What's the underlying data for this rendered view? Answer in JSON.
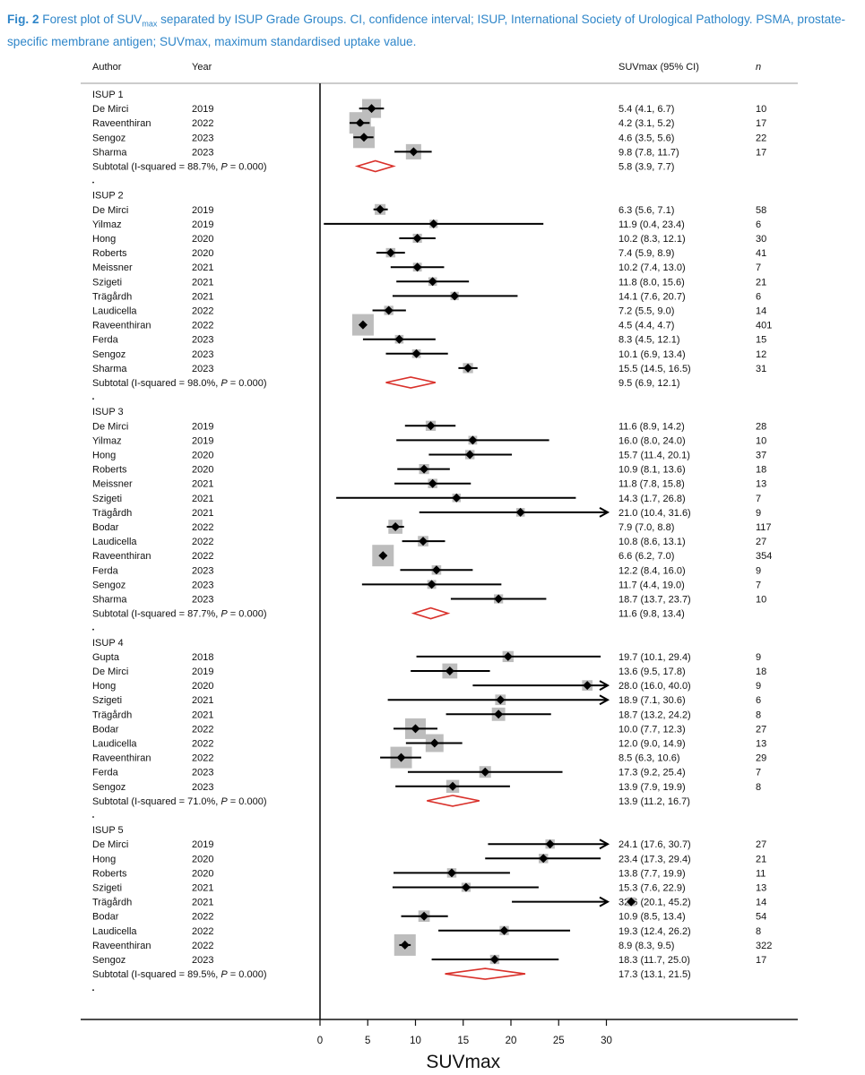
{
  "caption": {
    "fig_label": "Fig. 2",
    "pre": "Forest plot of SUV",
    "sub": "max",
    "post": " separated by ISUP Grade Groups. CI, confidence interval; ISUP, International Society of Urological Pathology. PSMA, prostate-specific membrane antigen; SUVmax, maximum standardised uptake value."
  },
  "colors": {
    "diamond_outline": "#d9302a",
    "box_fill": "#bdbdbd",
    "marker": "#000000"
  },
  "chart_data": {
    "type": "forest",
    "headers": {
      "author": "Author",
      "year": "Year",
      "estimate": "SUVmax (95% CI)",
      "n": "n"
    },
    "xlabel": "SUVmax",
    "xlim": [
      0,
      30
    ],
    "xticks": [
      0,
      5,
      10,
      15,
      20,
      25,
      30
    ],
    "reference_line": 0,
    "groups": [
      {
        "name": "ISUP 1",
        "studies": [
          {
            "author": "De Mirci",
            "year": "2019",
            "est": 5.4,
            "lo": 4.1,
            "hi": 6.7,
            "label": "5.4 (4.1, 6.7)",
            "n": "10"
          },
          {
            "author": "Raveenthiran",
            "year": "2022",
            "est": 4.2,
            "lo": 3.1,
            "hi": 5.2,
            "label": "4.2 (3.1, 5.2)",
            "n": "17"
          },
          {
            "author": "Sengoz",
            "year": "2023",
            "est": 4.6,
            "lo": 3.5,
            "hi": 5.6,
            "label": "4.6 (3.5, 5.6)",
            "n": "22"
          },
          {
            "author": "Sharma",
            "year": "2023",
            "est": 9.8,
            "lo": 7.8,
            "hi": 11.7,
            "label": "9.8 (7.8, 11.7)",
            "n": "17"
          }
        ],
        "subtotal": {
          "prefix": "Subtotal  (I-squared = 88.7%, ",
          "p_label": "P",
          "suffix": " = 0.000)",
          "est": 5.8,
          "lo": 3.9,
          "hi": 7.7,
          "label": "5.8 (3.9, 7.7)"
        }
      },
      {
        "name": "ISUP 2",
        "studies": [
          {
            "author": "De Mirci",
            "year": "2019",
            "est": 6.3,
            "lo": 5.6,
            "hi": 7.1,
            "label": "6.3 (5.6, 7.1)",
            "n": "58"
          },
          {
            "author": "Yilmaz",
            "year": "2019",
            "est": 11.9,
            "lo": 0.4,
            "hi": 23.4,
            "label": "11.9 (0.4, 23.4)",
            "n": "6"
          },
          {
            "author": "Hong",
            "year": "2020",
            "est": 10.2,
            "lo": 8.3,
            "hi": 12.1,
            "label": "10.2 (8.3, 12.1)",
            "n": "30"
          },
          {
            "author": "Roberts",
            "year": "2020",
            "est": 7.4,
            "lo": 5.9,
            "hi": 8.9,
            "label": "7.4 (5.9, 8.9)",
            "n": "41"
          },
          {
            "author": "Meissner",
            "year": "2021",
            "est": 10.2,
            "lo": 7.4,
            "hi": 13.0,
            "label": "10.2 (7.4, 13.0)",
            "n": "7"
          },
          {
            "author": "Szigeti",
            "year": "2021",
            "est": 11.8,
            "lo": 8.0,
            "hi": 15.6,
            "label": "11.8 (8.0, 15.6)",
            "n": "21"
          },
          {
            "author": "Trägårdh",
            "year": "2021",
            "est": 14.1,
            "lo": 7.6,
            "hi": 20.7,
            "label": "14.1 (7.6, 20.7)",
            "n": "6"
          },
          {
            "author": "Laudicella",
            "year": "2022",
            "est": 7.2,
            "lo": 5.5,
            "hi": 9.0,
            "label": "7.2 (5.5, 9.0)",
            "n": "14"
          },
          {
            "author": "Raveenthiran",
            "year": "2022",
            "est": 4.5,
            "lo": 4.4,
            "hi": 4.7,
            "label": "4.5 (4.4, 4.7)",
            "n": "401"
          },
          {
            "author": "Ferda",
            "year": "2023",
            "est": 8.3,
            "lo": 4.5,
            "hi": 12.1,
            "label": "8.3 (4.5, 12.1)",
            "n": "15"
          },
          {
            "author": "Sengoz",
            "year": "2023",
            "est": 10.1,
            "lo": 6.9,
            "hi": 13.4,
            "label": "10.1 (6.9, 13.4)",
            "n": "12"
          },
          {
            "author": "Sharma",
            "year": "2023",
            "est": 15.5,
            "lo": 14.5,
            "hi": 16.5,
            "label": "15.5 (14.5, 16.5)",
            "n": "31"
          }
        ],
        "subtotal": {
          "prefix": "Subtotal  (I-squared = 98.0%, ",
          "p_label": "P",
          "suffix": " = 0.000)",
          "est": 9.5,
          "lo": 6.9,
          "hi": 12.1,
          "label": "9.5 (6.9, 12.1)"
        }
      },
      {
        "name": "ISUP 3",
        "studies": [
          {
            "author": "De Mirci",
            "year": "2019",
            "est": 11.6,
            "lo": 8.9,
            "hi": 14.2,
            "label": "11.6 (8.9, 14.2)",
            "n": "28"
          },
          {
            "author": "Yilmaz",
            "year": "2019",
            "est": 16.0,
            "lo": 8.0,
            "hi": 24.0,
            "label": "16.0 (8.0, 24.0)",
            "n": "10"
          },
          {
            "author": "Hong",
            "year": "2020",
            "est": 15.7,
            "lo": 11.4,
            "hi": 20.1,
            "label": "15.7 (11.4, 20.1)",
            "n": "37"
          },
          {
            "author": "Roberts",
            "year": "2020",
            "est": 10.9,
            "lo": 8.1,
            "hi": 13.6,
            "label": "10.9 (8.1, 13.6)",
            "n": "18"
          },
          {
            "author": "Meissner",
            "year": "2021",
            "est": 11.8,
            "lo": 7.8,
            "hi": 15.8,
            "label": "11.8 (7.8, 15.8)",
            "n": "13"
          },
          {
            "author": "Szigeti",
            "year": "2021",
            "est": 14.3,
            "lo": 1.7,
            "hi": 26.8,
            "label": "14.3 (1.7, 26.8)",
            "n": "7"
          },
          {
            "author": "Trägårdh",
            "year": "2021",
            "est": 21.0,
            "lo": 10.4,
            "hi": 31.6,
            "label": "21.0 (10.4, 31.6)",
            "n": "9"
          },
          {
            "author": "Bodar",
            "year": "2022",
            "est": 7.9,
            "lo": 7.0,
            "hi": 8.8,
            "label": "7.9 (7.0, 8.8)",
            "n": "117"
          },
          {
            "author": "Laudicella",
            "year": "2022",
            "est": 10.8,
            "lo": 8.6,
            "hi": 13.1,
            "label": "10.8 (8.6, 13.1)",
            "n": "27"
          },
          {
            "author": "Raveenthiran",
            "year": "2022",
            "est": 6.6,
            "lo": 6.2,
            "hi": 7.0,
            "label": "6.6 (6.2, 7.0)",
            "n": "354"
          },
          {
            "author": "Ferda",
            "year": "2023",
            "est": 12.2,
            "lo": 8.4,
            "hi": 16.0,
            "label": "12.2 (8.4, 16.0)",
            "n": "9"
          },
          {
            "author": "Sengoz",
            "year": "2023",
            "est": 11.7,
            "lo": 4.4,
            "hi": 19.0,
            "label": "11.7 (4.4, 19.0)",
            "n": "7"
          },
          {
            "author": "Sharma",
            "year": "2023",
            "est": 18.7,
            "lo": 13.7,
            "hi": 23.7,
            "label": "18.7 (13.7, 23.7)",
            "n": "10"
          }
        ],
        "subtotal": {
          "prefix": "Subtotal  (I-squared = 87.7%, ",
          "p_label": "P",
          "suffix": " = 0.000)",
          "est": 11.6,
          "lo": 9.8,
          "hi": 13.4,
          "label": "11.6 (9.8, 13.4)"
        }
      },
      {
        "name": "ISUP 4",
        "studies": [
          {
            "author": "Gupta",
            "year": "2018",
            "est": 19.7,
            "lo": 10.1,
            "hi": 29.4,
            "label": "19.7 (10.1, 29.4)",
            "n": "9"
          },
          {
            "author": "De Mirci",
            "year": "2019",
            "est": 13.6,
            "lo": 9.5,
            "hi": 17.8,
            "label": "13.6 (9.5, 17.8)",
            "n": "18"
          },
          {
            "author": "Hong",
            "year": "2020",
            "est": 28.0,
            "lo": 16.0,
            "hi": 40.0,
            "label": "28.0 (16.0, 40.0)",
            "n": "9"
          },
          {
            "author": "Szigeti",
            "year": "2021",
            "est": 18.9,
            "lo": 7.1,
            "hi": 30.6,
            "label": "18.9 (7.1, 30.6)",
            "n": "6"
          },
          {
            "author": "Trägårdh",
            "year": "2021",
            "est": 18.7,
            "lo": 13.2,
            "hi": 24.2,
            "label": "18.7 (13.2, 24.2)",
            "n": "8"
          },
          {
            "author": "Bodar",
            "year": "2022",
            "est": 10.0,
            "lo": 7.7,
            "hi": 12.3,
            "label": "10.0 (7.7, 12.3)",
            "n": "27"
          },
          {
            "author": "Laudicella",
            "year": "2022",
            "est": 12.0,
            "lo": 9.0,
            "hi": 14.9,
            "label": "12.0 (9.0, 14.9)",
            "n": "13"
          },
          {
            "author": "Raveenthiran",
            "year": "2022",
            "est": 8.5,
            "lo": 6.3,
            "hi": 10.6,
            "label": "8.5 (6.3, 10.6)",
            "n": "29"
          },
          {
            "author": "Ferda",
            "year": "2023",
            "est": 17.3,
            "lo": 9.2,
            "hi": 25.4,
            "label": "17.3 (9.2, 25.4)",
            "n": "7"
          },
          {
            "author": "Sengoz",
            "year": "2023",
            "est": 13.9,
            "lo": 7.9,
            "hi": 19.9,
            "label": "13.9 (7.9, 19.9)",
            "n": "8"
          }
        ],
        "subtotal": {
          "prefix": "Subtotal  (I-squared = 71.0%, ",
          "p_label": "P",
          "suffix": " = 0.000)",
          "est": 13.9,
          "lo": 11.2,
          "hi": 16.7,
          "label": "13.9 (11.2, 16.7)"
        }
      },
      {
        "name": "ISUP 5",
        "studies": [
          {
            "author": "De Mirci",
            "year": "2019",
            "est": 24.1,
            "lo": 17.6,
            "hi": 30.7,
            "label": "24.1 (17.6, 30.7)",
            "n": "27"
          },
          {
            "author": "Hong",
            "year": "2020",
            "est": 23.4,
            "lo": 17.3,
            "hi": 29.4,
            "label": "23.4 (17.3, 29.4)",
            "n": "21"
          },
          {
            "author": "Roberts",
            "year": "2020",
            "est": 13.8,
            "lo": 7.7,
            "hi": 19.9,
            "label": "13.8 (7.7, 19.9)",
            "n": "11"
          },
          {
            "author": "Szigeti",
            "year": "2021",
            "est": 15.3,
            "lo": 7.6,
            "hi": 22.9,
            "label": "15.3 (7.6, 22.9)",
            "n": "13"
          },
          {
            "author": "Trägårdh",
            "year": "2021",
            "est": 32.6,
            "lo": 20.1,
            "hi": 45.2,
            "label": "32.6 (20.1, 45.2)",
            "n": "14"
          },
          {
            "author": "Bodar",
            "year": "2022",
            "est": 10.9,
            "lo": 8.5,
            "hi": 13.4,
            "label": "10.9 (8.5, 13.4)",
            "n": "54"
          },
          {
            "author": "Laudicella",
            "year": "2022",
            "est": 19.3,
            "lo": 12.4,
            "hi": 26.2,
            "label": "19.3 (12.4, 26.2)",
            "n": "8"
          },
          {
            "author": "Raveenthiran",
            "year": "2022",
            "est": 8.9,
            "lo": 8.3,
            "hi": 9.5,
            "label": "8.9 (8.3, 9.5)",
            "n": "322"
          },
          {
            "author": "Sengoz",
            "year": "2023",
            "est": 18.3,
            "lo": 11.7,
            "hi": 25.0,
            "label": "18.3 (11.7, 25.0)",
            "n": "17"
          }
        ],
        "subtotal": {
          "prefix": "Subtotal  (I-squared = 89.5%, ",
          "p_label": "P",
          "suffix": " = 0.000)",
          "est": 17.3,
          "lo": 13.1,
          "hi": 21.5,
          "label": "17.3 (13.1, 21.5)"
        }
      }
    ]
  }
}
